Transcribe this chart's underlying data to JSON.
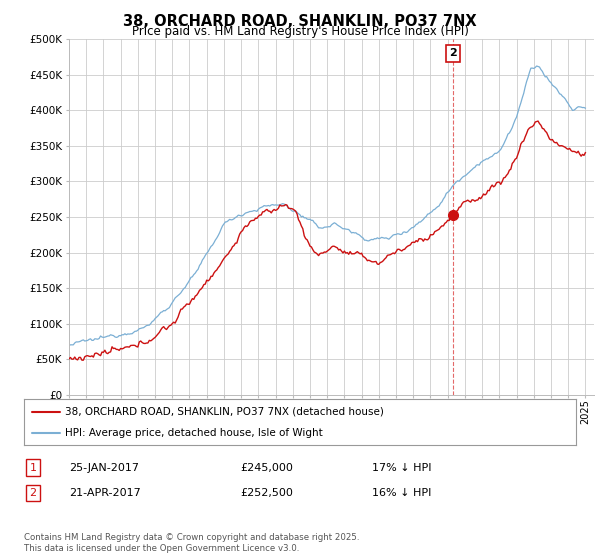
{
  "title": "38, ORCHARD ROAD, SHANKLIN, PO37 7NX",
  "subtitle": "Price paid vs. HM Land Registry's House Price Index (HPI)",
  "ylim": [
    0,
    500000
  ],
  "yticks": [
    0,
    50000,
    100000,
    150000,
    200000,
    250000,
    300000,
    350000,
    400000,
    450000,
    500000
  ],
  "ytick_labels": [
    "£0",
    "£50K",
    "£100K",
    "£150K",
    "£200K",
    "£250K",
    "£300K",
    "£350K",
    "£400K",
    "£450K",
    "£500K"
  ],
  "hpi_color": "#7bafd4",
  "sale_color": "#cc1111",
  "vline_color": "#dd4444",
  "marker1_date_x": 2017.07,
  "marker2_date_x": 2017.32,
  "marker1_y": 245000,
  "marker2_y": 252500,
  "legend_line1": "38, ORCHARD ROAD, SHANKLIN, PO37 7NX (detached house)",
  "legend_line2": "HPI: Average price, detached house, Isle of Wight",
  "table_row1_num": "1",
  "table_row1_date": "25-JAN-2017",
  "table_row1_price": "£245,000",
  "table_row1_hpi": "17% ↓ HPI",
  "table_row2_num": "2",
  "table_row2_date": "21-APR-2017",
  "table_row2_price": "£252,500",
  "table_row2_hpi": "16% ↓ HPI",
  "footnote": "Contains HM Land Registry data © Crown copyright and database right 2025.\nThis data is licensed under the Open Government Licence v3.0.",
  "bg_color": "#ffffff",
  "grid_color": "#cccccc",
  "xlim_left": 1995.0,
  "xlim_right": 2025.5
}
